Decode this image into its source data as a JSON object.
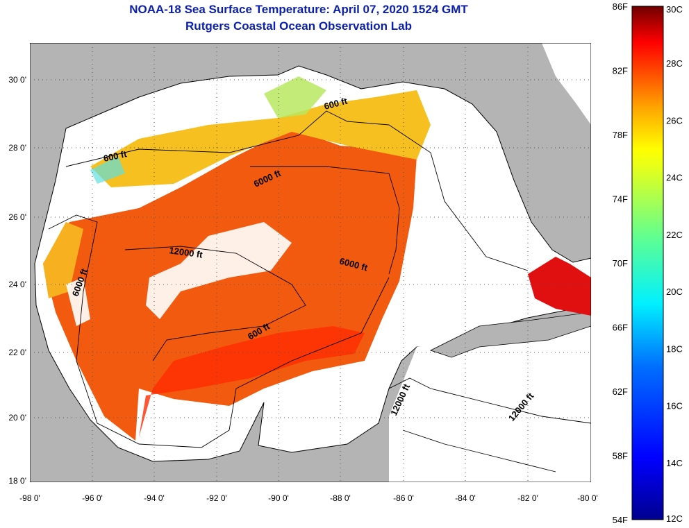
{
  "title": "NOAA-18 Sea Surface Temperature:  April 07, 2020 1524 GMT",
  "subtitle": "Rutgers Coastal Ocean Observation Lab",
  "map": {
    "lon_labels": [
      "-98 0'",
      "-96 0'",
      "-94 0'",
      "-92 0'",
      "-90 0'",
      "-88 0'",
      "-86 0'",
      "-84 0'",
      "-82 0'",
      "-80 0'"
    ],
    "lat_labels": [
      "30 0'",
      "28 0'",
      "26 0'",
      "24 0'",
      "22 0'",
      "20 0'",
      "18 0'"
    ],
    "lon_range": [
      -98,
      -80
    ],
    "lat_range": [
      18,
      31
    ],
    "contour_labels": [
      "600 ft",
      "600 ft",
      "600 ft",
      "6000 ft",
      "6000 ft",
      "6000 ft",
      "12000 ft",
      "12000 ft",
      "12000 ft"
    ],
    "colors": {
      "land": "#b4b4b4",
      "water_nodata": "#ffffff",
      "frame": "#000000"
    }
  },
  "colorbar": {
    "f_labels": [
      "86F",
      "82F",
      "78F",
      "74F",
      "70F",
      "66F",
      "62F",
      "58F",
      "54F"
    ],
    "c_labels": [
      "30C",
      "28C",
      "26C",
      "24C",
      "22C",
      "20C",
      "18C",
      "16C",
      "14C",
      "12C"
    ],
    "c_range": [
      12,
      30
    ],
    "f_range": [
      54,
      86
    ],
    "colors": [
      "#00008f",
      "#0000ff",
      "#0070ff",
      "#00dfff",
      "#50ff9f",
      "#c0ff40",
      "#ffff00",
      "#ffb000",
      "#ff5000",
      "#ff0000",
      "#900000"
    ]
  }
}
